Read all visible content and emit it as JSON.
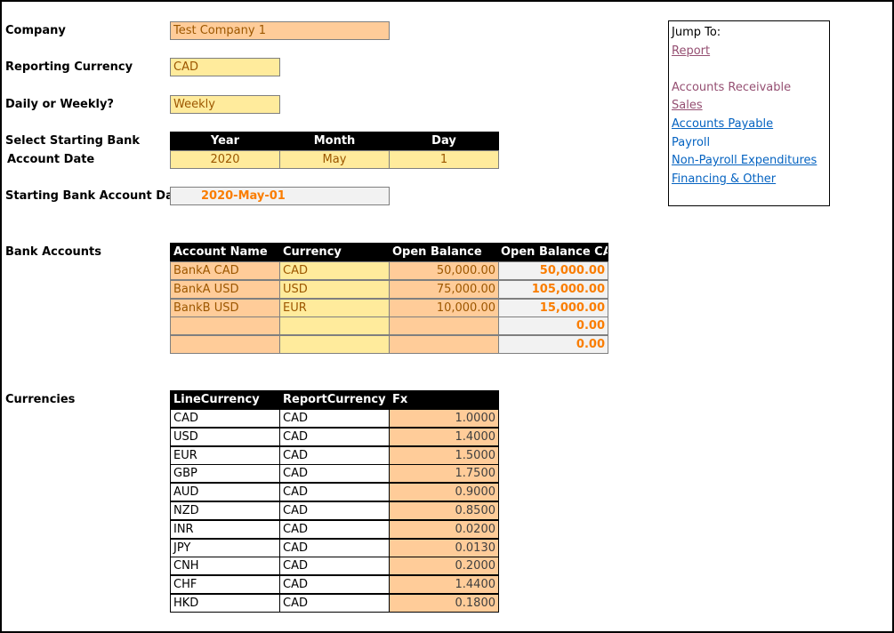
{
  "labels": {
    "company": "Company",
    "reporting_currency": "Reporting Currency",
    "daily_weekly": "Daily or Weekly?",
    "select_start_line1": "Select Starting Bank",
    "select_start_line2": "Account Date",
    "starting_date": "Starting Bank Account Date",
    "bank_accounts": "Bank Accounts",
    "currencies": "Currencies"
  },
  "inputs": {
    "company": "Test Company 1",
    "reporting_currency": "CAD",
    "daily_weekly": "Weekly"
  },
  "start_date": {
    "headers": [
      "Year",
      "Month",
      "Day"
    ],
    "values": [
      "2020",
      "May",
      "1"
    ],
    "computed": "2020-May-01"
  },
  "bank_accounts": {
    "headers": [
      "Account Name",
      "Currency",
      "Open Balance",
      "Open Balance CAD"
    ],
    "rows": [
      [
        "BankA CAD",
        "CAD",
        "50,000.00",
        "50,000.00"
      ],
      [
        "BankA USD",
        "USD",
        "75,000.00",
        "105,000.00"
      ],
      [
        "BankB USD",
        "EUR",
        "10,000.00",
        "15,000.00"
      ],
      [
        "",
        "",
        "",
        "0.00"
      ],
      [
        "",
        "",
        "",
        "0.00"
      ]
    ]
  },
  "currencies": {
    "headers": [
      "LineCurrency",
      "ReportCurrency",
      "Fx"
    ],
    "rows": [
      [
        "CAD",
        "CAD",
        "1.0000"
      ],
      [
        "USD",
        "CAD",
        "1.4000"
      ],
      [
        "EUR",
        "CAD",
        "1.5000"
      ],
      [
        "GBP",
        "CAD",
        "1.7500"
      ],
      [
        "AUD",
        "CAD",
        "0.9000"
      ],
      [
        "NZD",
        "CAD",
        "0.8500"
      ],
      [
        "INR",
        "CAD",
        "0.0200"
      ],
      [
        "JPY",
        "CAD",
        "0.0130"
      ],
      [
        "CNH",
        "CAD",
        "0.2000"
      ],
      [
        "CHF",
        "CAD",
        "1.4400"
      ],
      [
        "HKD",
        "CAD",
        "0.1800"
      ]
    ]
  },
  "jump_to": {
    "title": "Jump To:",
    "report": "Report",
    "accounts_receivable": "Accounts Receivable",
    "sales": "Sales",
    "accounts_payable": "Accounts Payable",
    "payroll": "Payroll",
    "non_payroll": "Non-Payroll Expenditures",
    "financing": "Financing & Other"
  },
  "colors": {
    "input_peach": "#ffcc99",
    "input_yellow": "#ffeb9c",
    "computed_orange": "#fa7d00",
    "header_black": "#000000",
    "link_blue": "#0563c1",
    "link_visited": "#954f72"
  }
}
